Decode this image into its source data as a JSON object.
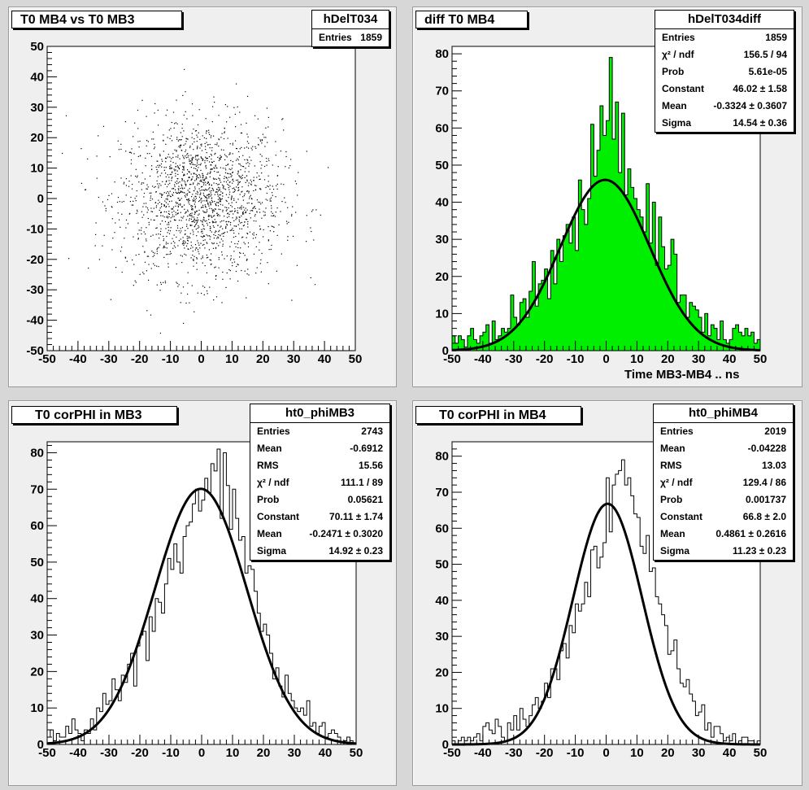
{
  "pads": [
    {
      "id": "pad1",
      "title": "T0 MB4 vs T0 MB3",
      "stats": {
        "name": "hDelT034",
        "rows": [
          {
            "label": "Entries",
            "value": "1859"
          }
        ]
      }
    },
    {
      "id": "pad2",
      "title": "diff T0 MB4",
      "xtitle": "Time MB3-MB4  ..  ns",
      "stats": {
        "name": "hDelT034diff",
        "rows": [
          {
            "label": "Entries",
            "value": "1859"
          },
          {
            "label": "χ² / ndf",
            "value": "156.5 / 94"
          },
          {
            "label": "Prob",
            "value": "5.61e-05"
          },
          {
            "label": "Constant",
            "value": "46.02 ± 1.58"
          },
          {
            "label": "Mean",
            "value": "-0.3324 ± 0.3607"
          },
          {
            "label": "Sigma",
            "value": "14.54 ± 0.36"
          }
        ]
      }
    },
    {
      "id": "pad3",
      "title": "T0 corPHI in MB3",
      "stats": {
        "name": "ht0_phiMB3",
        "rows": [
          {
            "label": "Entries",
            "value": "2743"
          },
          {
            "label": "Mean",
            "value": "-0.6912"
          },
          {
            "label": "RMS",
            "value": "15.56"
          },
          {
            "label": "χ² / ndf",
            "value": "111.1 / 89"
          },
          {
            "label": "Prob",
            "value": "0.05621"
          },
          {
            "label": "Constant",
            "value": "70.11 ± 1.74"
          },
          {
            "label": "Mean",
            "value": "-0.2471 ± 0.3020"
          },
          {
            "label": "Sigma",
            "value": "14.92 ± 0.23"
          }
        ]
      }
    },
    {
      "id": "pad4",
      "title": "T0 corPHI in MB4",
      "stats": {
        "name": "ht0_phiMB4",
        "rows": [
          {
            "label": "Entries",
            "value": "2019"
          },
          {
            "label": "Mean",
            "value": "-0.04228"
          },
          {
            "label": "RMS",
            "value": "13.03"
          },
          {
            "label": "χ² / ndf",
            "value": "129.4 / 86"
          },
          {
            "label": "Prob",
            "value": "0.001737"
          },
          {
            "label": "Constant",
            "value": "66.8 ± 2.0"
          },
          {
            "label": "Mean",
            "value": "0.4861 ± 0.2616"
          },
          {
            "label": "Sigma",
            "value": "11.23 ± 0.23"
          }
        ]
      }
    }
  ],
  "chart_data": [
    {
      "type": "scatter",
      "title": "T0 MB4 vs T0 MB3",
      "xlim": [
        -50,
        50
      ],
      "ylim": [
        -50,
        50
      ],
      "x_ticks": [
        -50,
        -40,
        -30,
        -20,
        -10,
        0,
        10,
        20,
        30,
        40,
        50
      ],
      "y_ticks": [
        -50,
        -40,
        -30,
        -20,
        -10,
        0,
        10,
        20,
        30,
        40,
        50
      ],
      "entries": 1859,
      "distribution": {
        "center_x": 0.0,
        "center_y": 0.0,
        "sigma_x": 13.0,
        "sigma_y": 13.0
      },
      "point_color": "#000000",
      "grid": false
    },
    {
      "type": "bar",
      "title": "diff T0 MB4",
      "xlabel": "Time MB3-MB4  ..  ns",
      "xlim": [
        -50,
        50
      ],
      "ylim": [
        0,
        82
      ],
      "x_ticks": [
        -50,
        -40,
        -30,
        -20,
        -10,
        0,
        10,
        20,
        30,
        40,
        50
      ],
      "y_ticks": [
        0,
        10,
        20,
        30,
        40,
        50,
        60,
        70,
        80
      ],
      "bin_edges_start": -50,
      "bin_width": 1,
      "values": [
        4,
        2,
        4,
        3,
        1,
        4,
        6,
        3,
        2,
        4,
        5,
        7,
        2,
        8,
        3,
        4,
        6,
        5,
        6,
        15,
        9,
        7,
        13,
        14,
        9,
        16,
        24,
        12,
        18,
        19,
        22,
        14,
        27,
        18,
        30,
        24,
        31,
        34,
        29,
        36,
        27,
        46,
        38,
        34,
        41,
        61,
        47,
        54,
        66,
        58,
        62,
        79,
        57,
        67,
        48,
        64,
        42,
        49,
        44,
        41,
        38,
        36,
        32,
        45,
        29,
        40,
        23,
        36,
        28,
        22,
        23,
        30,
        26,
        13,
        15,
        15,
        9,
        13,
        12,
        11,
        9,
        5,
        10,
        4,
        7,
        6,
        3,
        8,
        3,
        2,
        3,
        6,
        7,
        5,
        4,
        6,
        4,
        5,
        2,
        3
      ],
      "fill_color": "#00ee00",
      "fit": {
        "type": "gaus",
        "constant": 46.02,
        "mean": -0.3324,
        "sigma": 14.54
      },
      "grid": false
    },
    {
      "type": "bar",
      "title": "T0 corPHI in MB3",
      "xlim": [
        -50,
        50
      ],
      "ylim": [
        0,
        83
      ],
      "x_ticks": [
        -50,
        -40,
        -30,
        -20,
        -10,
        0,
        10,
        20,
        30,
        40,
        50
      ],
      "y_ticks": [
        0,
        10,
        20,
        30,
        40,
        50,
        60,
        70,
        80
      ],
      "bin_edges_start": -50,
      "bin_width": 1,
      "values": [
        2,
        4,
        1,
        3,
        2,
        2,
        5,
        3,
        7,
        4,
        3,
        1,
        4,
        3,
        7,
        4,
        10,
        9,
        14,
        11,
        12,
        18,
        15,
        12,
        19,
        17,
        22,
        25,
        16,
        27,
        30,
        31,
        23,
        35,
        31,
        40,
        39,
        36,
        44,
        51,
        48,
        55,
        50,
        47,
        57,
        60,
        61,
        66,
        70,
        64,
        67,
        73,
        69,
        77,
        75,
        81,
        62,
        80,
        71,
        59,
        70,
        62,
        56,
        57,
        47,
        49,
        48,
        42,
        36,
        31,
        33,
        30,
        25,
        18,
        21,
        16,
        13,
        19,
        14,
        12,
        10,
        9,
        10,
        8,
        12,
        5,
        6,
        3,
        5,
        6,
        2,
        3,
        4,
        3,
        2,
        0,
        1,
        2,
        1,
        0
      ],
      "fill_color": "none",
      "fit": {
        "type": "gaus",
        "constant": 70.11,
        "mean": -0.2471,
        "sigma": 14.92
      },
      "grid": false
    },
    {
      "type": "bar",
      "title": "T0 corPHI in MB4",
      "xlim": [
        -50,
        50
      ],
      "ylim": [
        0,
        84
      ],
      "x_ticks": [
        -50,
        -40,
        -30,
        -20,
        -10,
        0,
        10,
        20,
        30,
        40,
        50
      ],
      "y_ticks": [
        0,
        10,
        20,
        30,
        40,
        50,
        60,
        70,
        80
      ],
      "bin_edges_start": -50,
      "bin_width": 1,
      "values": [
        1,
        0,
        1,
        2,
        1,
        2,
        1,
        2,
        3,
        1,
        5,
        6,
        4,
        3,
        7,
        5,
        2,
        1,
        6,
        4,
        8,
        4,
        10,
        7,
        5,
        8,
        11,
        13,
        10,
        12,
        17,
        13,
        21,
        21,
        18,
        26,
        28,
        24,
        33,
        31,
        39,
        37,
        39,
        45,
        41,
        54,
        55,
        49,
        52,
        56,
        74,
        59,
        72,
        75,
        76,
        79,
        72,
        74,
        69,
        64,
        63,
        55,
        53,
        58,
        48,
        49,
        41,
        39,
        36,
        33,
        25,
        26,
        29,
        21,
        17,
        16,
        18,
        14,
        12,
        8,
        9,
        11,
        4,
        6,
        2,
        5,
        5,
        3,
        1,
        2,
        1,
        3,
        0,
        1,
        2,
        2,
        1,
        1,
        0,
        1
      ],
      "fill_color": "none",
      "fit": {
        "type": "gaus",
        "constant": 66.8,
        "mean": 0.4861,
        "sigma": 11.23
      },
      "grid": false
    }
  ]
}
